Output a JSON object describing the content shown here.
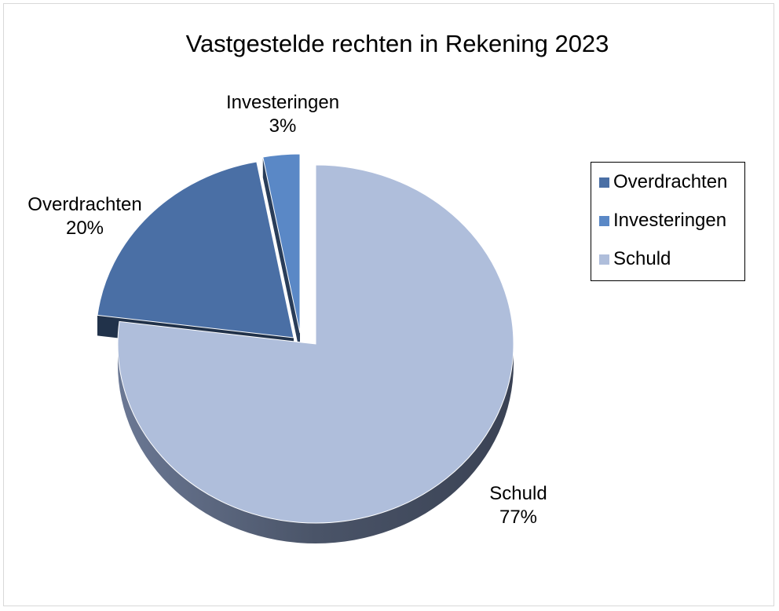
{
  "chart_data": {
    "type": "pie",
    "title": "Vastgestelde rechten in Rekening 2023",
    "legend_position": "right",
    "slices": [
      {
        "name": "Overdrachten",
        "percent_label": "20%",
        "value": 20,
        "color": "#4a6fa5"
      },
      {
        "name": "Investeringen",
        "percent_label": "3%",
        "value": 3,
        "color": "#5a88c6"
      },
      {
        "name": "Schuld",
        "percent_label": "77%",
        "value": 77,
        "color": "#afbedb"
      }
    ]
  }
}
